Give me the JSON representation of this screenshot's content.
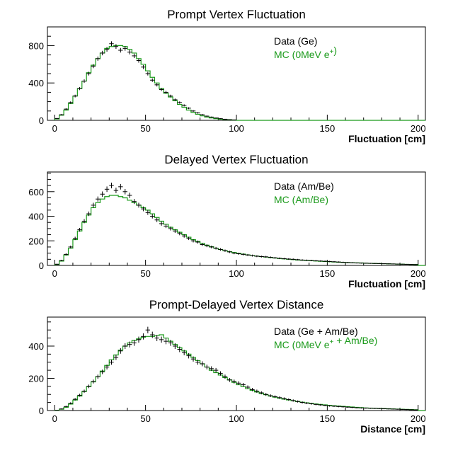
{
  "colors": {
    "data": "#000000",
    "mc": "#1a9a1a"
  },
  "chart_data": [
    {
      "type": "histogram",
      "title": "Prompt Vertex Fluctuation",
      "xlabel": "Fluctuation [cm]",
      "ylabel": "",
      "xlim": [
        -4,
        204
      ],
      "ylim": [
        0,
        1000
      ],
      "xticks": [
        0,
        50,
        100,
        150,
        200
      ],
      "yticks": [
        0,
        400,
        800
      ],
      "legend_position": "top-right",
      "bin_width": 2.5,
      "series": [
        {
          "name": "Data (Ge)",
          "style": "points-with-errorbars",
          "x": [
            1.25,
            3.75,
            6.25,
            8.75,
            11.25,
            13.75,
            16.25,
            18.75,
            21.25,
            23.75,
            26.25,
            28.75,
            31.25,
            33.75,
            36.25,
            38.75,
            41.25,
            43.75,
            46.25,
            48.75,
            51.25,
            53.75,
            56.25,
            58.75,
            61.25,
            63.75,
            66.25,
            68.75,
            71.25,
            73.75,
            76.25,
            78.75,
            81.25,
            83.75,
            86.25,
            88.75,
            91.25,
            93.75,
            96.25,
            98.75
          ],
          "values": [
            20,
            60,
            120,
            190,
            260,
            340,
            420,
            500,
            580,
            660,
            720,
            760,
            820,
            790,
            750,
            770,
            730,
            690,
            640,
            570,
            500,
            430,
            380,
            330,
            300,
            260,
            220,
            190,
            160,
            130,
            100,
            80,
            60,
            45,
            35,
            25,
            18,
            12,
            8,
            5
          ]
        },
        {
          "name": "MC (0MeV e+)",
          "style": "step",
          "x": [
            1.25,
            3.75,
            6.25,
            8.75,
            11.25,
            13.75,
            16.25,
            18.75,
            21.25,
            23.75,
            26.25,
            28.75,
            31.25,
            33.75,
            36.25,
            38.75,
            41.25,
            43.75,
            46.25,
            48.75,
            51.25,
            53.75,
            56.25,
            58.75,
            61.25,
            63.75,
            66.25,
            68.75,
            71.25,
            73.75,
            76.25,
            78.75,
            81.25,
            83.75,
            86.25,
            88.75,
            91.25,
            93.75,
            96.25,
            98.75
          ],
          "values": [
            15,
            55,
            110,
            180,
            260,
            340,
            420,
            510,
            590,
            660,
            720,
            770,
            790,
            800,
            800,
            790,
            760,
            720,
            660,
            600,
            530,
            460,
            400,
            340,
            290,
            250,
            210,
            170,
            140,
            110,
            85,
            65,
            48,
            35,
            25,
            18,
            12,
            8,
            5,
            3
          ]
        }
      ]
    },
    {
      "type": "histogram",
      "title": "Delayed Vertex Fluctuation",
      "xlabel": "Fluctuation [cm]",
      "ylabel": "",
      "xlim": [
        -4,
        204
      ],
      "ylim": [
        0,
        760
      ],
      "xticks": [
        0,
        50,
        100,
        150,
        200
      ],
      "yticks": [
        0,
        200,
        400,
        600
      ],
      "legend_position": "top-right",
      "bin_width": 2.5,
      "series": [
        {
          "name": "Data (Am/Be)",
          "style": "points-with-errorbars",
          "x": [
            1.25,
            3.75,
            6.25,
            8.75,
            11.25,
            13.75,
            16.25,
            18.75,
            21.25,
            23.75,
            26.25,
            28.75,
            31.25,
            33.75,
            36.25,
            38.75,
            41.25,
            43.75,
            46.25,
            48.75,
            51.25,
            53.75,
            56.25,
            58.75,
            61.25,
            63.75,
            66.25,
            68.75,
            71.25,
            73.75,
            76.25,
            78.75,
            81.25,
            83.75,
            86.25,
            88.75,
            91.25,
            93.75,
            96.25,
            98.75,
            101.25,
            103.75,
            106.25,
            108.75,
            111.25,
            113.75,
            116.25,
            118.75,
            121.25,
            123.75,
            126.25,
            128.75,
            131.25,
            133.75,
            136.25,
            138.75,
            141.25,
            143.75,
            146.25,
            148.75,
            151.25,
            153.75,
            156.25,
            158.75,
            161.25,
            163.75,
            166.25,
            168.75,
            171.25,
            173.75,
            176.25,
            178.75,
            181.25,
            183.75,
            186.25,
            188.75,
            191.25,
            193.75,
            196.25,
            198.75
          ],
          "values": [
            10,
            40,
            90,
            150,
            220,
            290,
            360,
            420,
            490,
            540,
            580,
            620,
            650,
            610,
            640,
            600,
            570,
            520,
            490,
            460,
            430,
            400,
            370,
            340,
            320,
            300,
            280,
            260,
            240,
            220,
            200,
            190,
            170,
            160,
            150,
            140,
            130,
            120,
            110,
            100,
            95,
            90,
            85,
            80,
            75,
            72,
            70,
            66,
            62,
            58,
            55,
            52,
            50,
            47,
            44,
            42,
            40,
            38,
            36,
            34,
            32,
            30,
            28,
            26,
            24,
            22,
            20,
            19,
            18,
            17,
            16,
            15,
            14,
            13,
            12,
            11,
            10,
            9,
            8,
            7
          ]
        },
        {
          "name": "MC (Am/Be)",
          "style": "step",
          "x": [
            1.25,
            3.75,
            6.25,
            8.75,
            11.25,
            13.75,
            16.25,
            18.75,
            21.25,
            23.75,
            26.25,
            28.75,
            31.25,
            33.75,
            36.25,
            38.75,
            41.25,
            43.75,
            46.25,
            48.75,
            51.25,
            53.75,
            56.25,
            58.75,
            61.25,
            63.75,
            66.25,
            68.75,
            71.25,
            73.75,
            76.25,
            78.75,
            81.25,
            83.75,
            86.25,
            88.75,
            91.25,
            93.75,
            96.25,
            98.75,
            101.25,
            103.75,
            106.25,
            108.75,
            111.25,
            113.75,
            116.25,
            118.75,
            121.25,
            123.75,
            126.25,
            128.75,
            131.25,
            133.75,
            136.25,
            138.75,
            141.25,
            143.75,
            146.25,
            148.75,
            151.25,
            153.75,
            156.25,
            158.75,
            161.25,
            163.75,
            166.25,
            168.75,
            171.25,
            173.75,
            176.25,
            178.75,
            181.25,
            183.75,
            186.25,
            188.75,
            191.25,
            193.75,
            196.25,
            198.75
          ],
          "values": [
            8,
            35,
            85,
            140,
            210,
            280,
            350,
            410,
            470,
            510,
            540,
            560,
            570,
            570,
            560,
            550,
            530,
            510,
            490,
            470,
            450,
            420,
            390,
            360,
            335,
            310,
            290,
            270,
            250,
            230,
            210,
            195,
            180,
            165,
            152,
            140,
            130,
            120,
            112,
            105,
            98,
            92,
            86,
            81,
            76,
            72,
            68,
            64,
            60,
            56,
            53,
            50,
            47,
            44,
            42,
            40,
            38,
            36,
            34,
            32,
            30,
            28,
            26,
            24,
            23,
            22,
            21,
            20,
            18,
            17,
            16,
            15,
            14,
            13,
            12,
            11,
            10,
            9,
            8,
            7
          ]
        }
      ]
    },
    {
      "type": "histogram",
      "title": "Prompt-Delayed Vertex Distance",
      "xlabel": "Distance [cm]",
      "ylabel": "",
      "xlim": [
        -4,
        204
      ],
      "ylim": [
        0,
        580
      ],
      "xticks": [
        0,
        50,
        100,
        150,
        200
      ],
      "yticks": [
        0,
        200,
        400
      ],
      "legend_position": "top-right",
      "bin_width": 2.5,
      "series": [
        {
          "name": "Data (Ge + Am/Be)",
          "style": "points-with-errorbars",
          "x": [
            1.25,
            3.75,
            6.25,
            8.75,
            11.25,
            13.75,
            16.25,
            18.75,
            21.25,
            23.75,
            26.25,
            28.75,
            31.25,
            33.75,
            36.25,
            38.75,
            41.25,
            43.75,
            46.25,
            48.75,
            51.25,
            53.75,
            56.25,
            58.75,
            61.25,
            63.75,
            66.25,
            68.75,
            71.25,
            73.75,
            76.25,
            78.75,
            81.25,
            83.75,
            86.25,
            88.75,
            91.25,
            93.75,
            96.25,
            98.75,
            101.25,
            103.75,
            106.25,
            108.75,
            111.25,
            113.75,
            116.25,
            118.75,
            121.25,
            123.75,
            126.25,
            128.75,
            131.25,
            133.75,
            136.25,
            138.75,
            141.25,
            143.75,
            146.25,
            148.75,
            151.25,
            153.75,
            156.25,
            158.75,
            161.25,
            163.75,
            166.25,
            168.75,
            171.25,
            173.75,
            176.25,
            178.75,
            181.25,
            183.75,
            186.25,
            188.75,
            191.25,
            193.75,
            196.25,
            198.75
          ],
          "values": [
            2,
            10,
            25,
            45,
            70,
            95,
            120,
            150,
            180,
            210,
            240,
            270,
            300,
            330,
            370,
            400,
            410,
            420,
            440,
            460,
            500,
            470,
            450,
            440,
            430,
            420,
            400,
            380,
            360,
            340,
            320,
            300,
            290,
            270,
            260,
            250,
            230,
            210,
            190,
            180,
            170,
            160,
            145,
            130,
            120,
            110,
            100,
            92,
            86,
            80,
            74,
            68,
            62,
            56,
            50,
            46,
            42,
            38,
            35,
            32,
            29,
            27,
            25,
            23,
            21,
            19,
            17,
            16,
            15,
            14,
            13,
            12,
            11,
            10,
            9,
            8,
            7,
            6,
            5,
            4
          ]
        },
        {
          "name": "MC (0MeV e+ + Am/Be)",
          "style": "step",
          "x": [
            1.25,
            3.75,
            6.25,
            8.75,
            11.25,
            13.75,
            16.25,
            18.75,
            21.25,
            23.75,
            26.25,
            28.75,
            31.25,
            33.75,
            36.25,
            38.75,
            41.25,
            43.75,
            46.25,
            48.75,
            51.25,
            53.75,
            56.25,
            58.75,
            61.25,
            63.75,
            66.25,
            68.75,
            71.25,
            73.75,
            76.25,
            78.75,
            81.25,
            83.75,
            86.25,
            88.75,
            91.25,
            93.75,
            96.25,
            98.75,
            101.25,
            103.75,
            106.25,
            108.75,
            111.25,
            113.75,
            116.25,
            118.75,
            121.25,
            123.75,
            126.25,
            128.75,
            131.25,
            133.75,
            136.25,
            138.75,
            141.25,
            143.75,
            146.25,
            148.75,
            151.25,
            153.75,
            156.25,
            158.75,
            161.25,
            163.75,
            166.25,
            168.75,
            171.25,
            173.75,
            176.25,
            178.75,
            181.25,
            183.75,
            186.25,
            188.75,
            191.25,
            193.75,
            196.25,
            198.75
          ],
          "values": [
            1,
            8,
            20,
            40,
            65,
            90,
            118,
            148,
            178,
            210,
            245,
            280,
            315,
            345,
            375,
            400,
            420,
            435,
            445,
            455,
            460,
            460,
            465,
            470,
            450,
            430,
            410,
            390,
            370,
            350,
            330,
            310,
            290,
            270,
            250,
            235,
            220,
            205,
            190,
            175,
            160,
            148,
            136,
            125,
            115,
            106,
            98,
            90,
            83,
            77,
            71,
            66,
            61,
            56,
            52,
            48,
            44,
            41,
            38,
            35,
            32,
            30,
            28,
            26,
            24,
            22,
            20,
            18,
            16,
            15,
            14,
            13,
            12,
            11,
            10,
            9,
            8,
            7,
            6,
            5
          ]
        }
      ]
    }
  ]
}
